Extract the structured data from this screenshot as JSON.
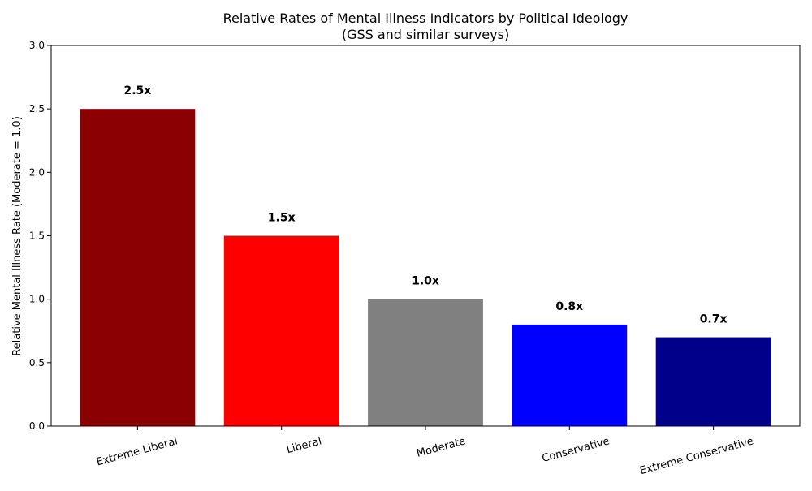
{
  "chart_data": {
    "type": "bar",
    "title_line1": "Relative Rates of Mental Illness Indicators by Political Ideology",
    "title_line2": "(GSS and similar surveys)",
    "xlabel": "",
    "ylabel": "Relative Mental Illness Rate (Moderate = 1.0)",
    "categories": [
      "Extreme Liberal",
      "Liberal",
      "Moderate",
      "Conservative",
      "Extreme Conservative"
    ],
    "values": [
      2.5,
      1.5,
      1.0,
      0.8,
      0.7
    ],
    "data_labels": [
      "2.5x",
      "1.5x",
      "1.0x",
      "0.8x",
      "0.7x"
    ],
    "colors": [
      "#8b0000",
      "#ff0000",
      "#808080",
      "#0000ff",
      "#00008b"
    ],
    "ylim": [
      0,
      3.0
    ],
    "yticks": [
      0.0,
      0.5,
      1.0,
      1.5,
      2.0,
      2.5,
      3.0
    ],
    "ytick_labels": [
      "0.0",
      "0.5",
      "1.0",
      "1.5",
      "2.0",
      "2.5",
      "3.0"
    ],
    "grid": false,
    "legend": "none"
  }
}
